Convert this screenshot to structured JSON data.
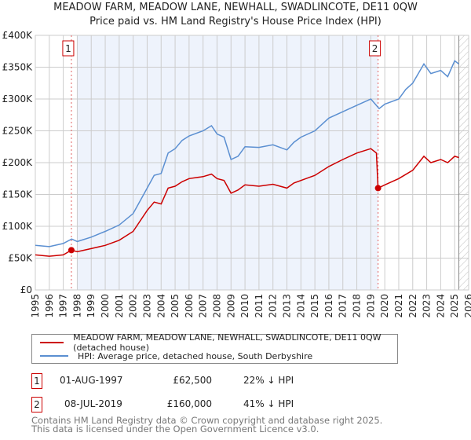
{
  "title_line1": "MEADOW FARM, MEADOW LANE, NEWHALL, SWADLINCOTE, DE11 0QW",
  "title_line2": "Price paid vs. HM Land Registry's House Price Index (HPI)",
  "colors": {
    "property": "#cc0000",
    "hpi": "#5b8fd1",
    "shade": "#eef3fc",
    "grid": "#cccccc"
  },
  "chart_data": {
    "type": "line",
    "xlim": [
      1995,
      2026
    ],
    "ylim": [
      0,
      400000
    ],
    "x_ticks": [
      "1995",
      "1996",
      "1997",
      "1998",
      "1999",
      "2000",
      "2001",
      "2002",
      "2003",
      "2004",
      "2005",
      "2006",
      "2007",
      "2008",
      "2009",
      "2010",
      "2011",
      "2012",
      "2013",
      "2014",
      "2015",
      "2016",
      "2017",
      "2018",
      "2019",
      "2020",
      "2021",
      "2022",
      "2023",
      "2024",
      "2025",
      "2026"
    ],
    "y_ticks": [
      {
        "v": 0,
        "label": "£0"
      },
      {
        "v": 50000,
        "label": "£50K"
      },
      {
        "v": 100000,
        "label": "£100K"
      },
      {
        "v": 150000,
        "label": "£150K"
      },
      {
        "v": 200000,
        "label": "£200K"
      },
      {
        "v": 250000,
        "label": "£250K"
      },
      {
        "v": 300000,
        "label": "£300K"
      },
      {
        "v": 350000,
        "label": "£350K"
      },
      {
        "v": 400000,
        "label": "£400K"
      }
    ],
    "grid": true,
    "shaded_range": [
      1998.0,
      2019.52
    ],
    "hatched_from": 2025.3,
    "series": [
      {
        "name": "MEADOW FARM, MEADOW LANE, NEWHALL, SWADLINCOTE, DE11 0QW (detached house)",
        "color": "#cc0000",
        "x": [
          1995,
          1996,
          1997,
          1997.58,
          1998,
          1999,
          2000,
          2001,
          2002,
          2003,
          2003.5,
          2004,
          2004.5,
          2005,
          2005.5,
          2006,
          2007,
          2007.6,
          2008,
          2008.5,
          2009,
          2009.5,
          2010,
          2011,
          2012,
          2013,
          2013.5,
          2014,
          2015,
          2016,
          2017,
          2018,
          2019,
          2019.4,
          2019.52,
          2020,
          2021,
          2022,
          2022.8,
          2023.3,
          2024,
          2024.5,
          2025,
          2025.3
        ],
        "y": [
          55000,
          53000,
          55000,
          62500,
          60000,
          65000,
          70000,
          78000,
          92000,
          125000,
          138000,
          135000,
          160000,
          163000,
          170000,
          175000,
          178000,
          182000,
          175000,
          172000,
          152000,
          157000,
          165000,
          163000,
          166000,
          160000,
          168000,
          172000,
          180000,
          194000,
          205000,
          215000,
          222000,
          215000,
          160000,
          165000,
          175000,
          188000,
          210000,
          200000,
          205000,
          200000,
          210000,
          208000
        ]
      },
      {
        "name": "HPI: Average price, detached house, South Derbyshire",
        "color": "#5b8fd1",
        "x": [
          1995,
          1996,
          1997,
          1997.6,
          1998,
          1999,
          2000,
          2001,
          2002,
          2003,
          2003.5,
          2004,
          2004.5,
          2005,
          2005.5,
          2006,
          2007,
          2007.6,
          2008,
          2008.5,
          2009,
          2009.5,
          2010,
          2011,
          2012,
          2013,
          2013.5,
          2014,
          2015,
          2016,
          2017,
          2018,
          2019,
          2019.6,
          2020,
          2021,
          2021.5,
          2022,
          2022.8,
          2023.3,
          2024,
          2024.5,
          2025,
          2025.3
        ],
        "y": [
          70000,
          68000,
          73000,
          80000,
          76000,
          83000,
          92000,
          102000,
          120000,
          160000,
          180000,
          183000,
          215000,
          222000,
          235000,
          242000,
          250000,
          258000,
          245000,
          240000,
          205000,
          210000,
          225000,
          224000,
          228000,
          220000,
          232000,
          240000,
          250000,
          270000,
          280000,
          290000,
          300000,
          285000,
          292000,
          300000,
          315000,
          325000,
          355000,
          340000,
          345000,
          335000,
          360000,
          355000
        ]
      }
    ],
    "markers": [
      {
        "label": "1",
        "x": 1997.58,
        "y": 62500
      },
      {
        "label": "2",
        "x": 2019.52,
        "y": 160000
      }
    ]
  },
  "legend": [
    "MEADOW FARM, MEADOW LANE, NEWHALL, SWADLINCOTE, DE11 0QW (detached house)",
    "HPI: Average price, detached house, South Derbyshire"
  ],
  "transactions": [
    {
      "num": "1",
      "date": "01-AUG-1997",
      "price": "£62,500",
      "hpi": "22% ↓ HPI"
    },
    {
      "num": "2",
      "date": "08-JUL-2019",
      "price": "£160,000",
      "hpi": "41% ↓ HPI"
    }
  ],
  "footer_line1": "Contains HM Land Registry data © Crown copyright and database right 2025.",
  "footer_line2": "This data is licensed under the Open Government Licence v3.0."
}
